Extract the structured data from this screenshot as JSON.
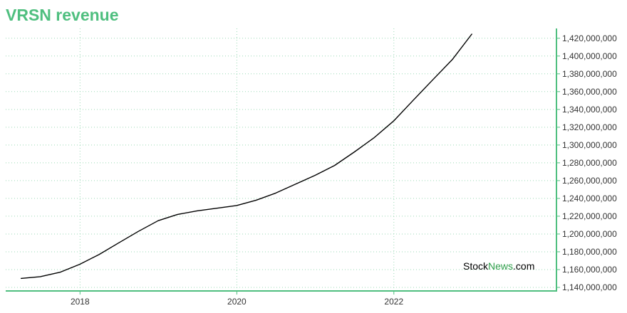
{
  "chart_data": {
    "type": "line",
    "title": "VRSN revenue",
    "xlabel": "",
    "ylabel": "",
    "x_ticks": [
      "2018",
      "2020",
      "2022"
    ],
    "y_ticks": [
      1140000000,
      1160000000,
      1180000000,
      1200000000,
      1220000000,
      1240000000,
      1260000000,
      1280000000,
      1300000000,
      1320000000,
      1340000000,
      1360000000,
      1380000000,
      1400000000,
      1420000000
    ],
    "xlim": [
      "2017-01-20",
      "2024-01-28"
    ],
    "ylim": [
      1136000000,
      1431000000
    ],
    "grid": true,
    "y_axis_position": "right",
    "line_color": "#000000",
    "series": [
      {
        "x": [
          "2017-03-31",
          "2017-06-30",
          "2017-09-30",
          "2017-12-31",
          "2018-03-31",
          "2018-06-30",
          "2018-09-30",
          "2018-12-31",
          "2019-03-31",
          "2019-06-30",
          "2019-09-30",
          "2019-12-31",
          "2020-03-31",
          "2020-06-30",
          "2020-09-30",
          "2020-12-31",
          "2021-03-31",
          "2021-06-30",
          "2021-09-30",
          "2021-12-31",
          "2022-03-31",
          "2022-06-30",
          "2022-09-30",
          "2022-12-31"
        ],
        "y": [
          1150000000,
          1152000000,
          1157000000,
          1166000000,
          1177000000,
          1190000000,
          1203000000,
          1215000000,
          1222000000,
          1226000000,
          1229000000,
          1232000000,
          1238000000,
          1246000000,
          1256000000,
          1266000000,
          1277000000,
          1292000000,
          1308000000,
          1327000000,
          1350000000,
          1373000000,
          1396000000,
          1425000000
        ]
      }
    ]
  },
  "watermark": {
    "part1": "Stock",
    "part2": "News",
    "part3": ".com",
    "colors": {
      "stock": "#000000",
      "news": "#2e9e4a"
    }
  },
  "colors": {
    "title": "#4fbf7f",
    "axis": "#4fbf7f",
    "grid": "#9ad9b5"
  }
}
